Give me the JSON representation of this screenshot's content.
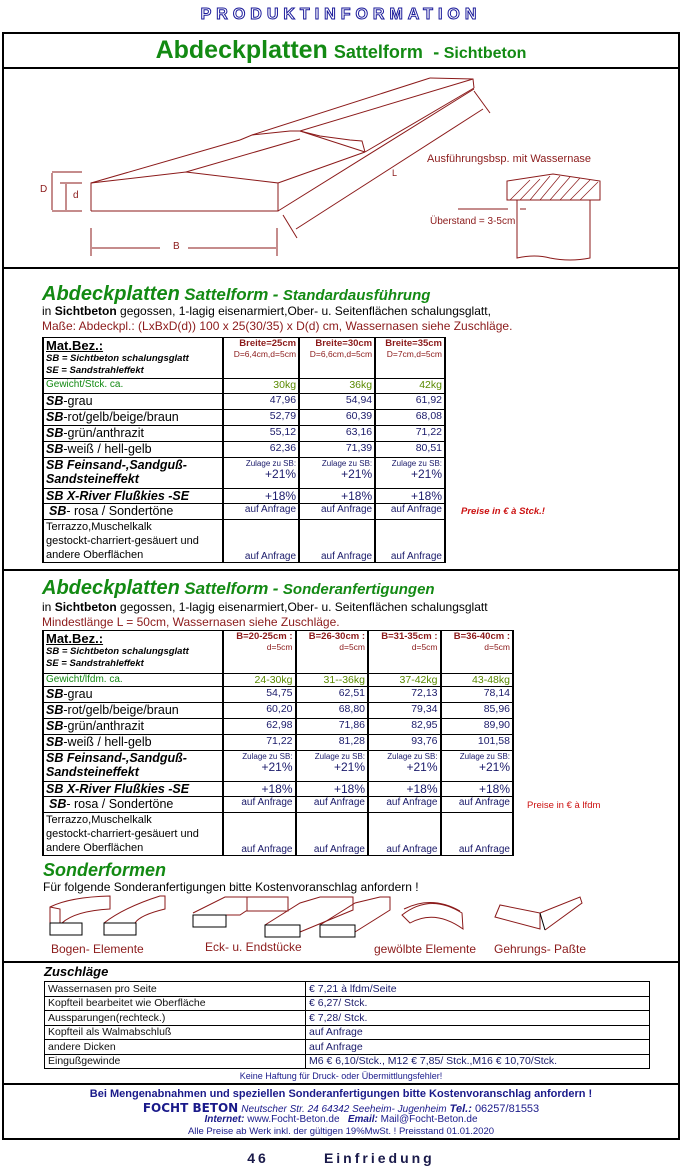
{
  "header": {
    "title": "PRODUKTINFORMATION"
  },
  "main_title": {
    "part1": "Abdeckplatten",
    "part2": "Sattelform",
    "dash": "-",
    "part3": "Sichtbeton"
  },
  "diagram": {
    "label_D": "D",
    "label_d": "d",
    "label_B": "B",
    "label_L": "L",
    "detail_caption": "Ausführungsbsp. mit Wassernase",
    "overhang": "Überstand = 3-5cm"
  },
  "standard": {
    "title": {
      "a": "Abdeckplatten",
      "b": "Sattelform",
      "dash": "-",
      "c": "Standardausführung"
    },
    "line1_pre": "in ",
    "line1_bold": "Sichtbeton",
    "line1_post": " gegossen, 1-lagig eisenarmiert,Ober- u. Seitenflächen schalungsglatt,",
    "line2": "Maße: Abdeckpl.: (LxBxD(d)) 100 x 25(30/35) x D(d) cm, Wassernasen siehe Zuschläge.",
    "table": {
      "mat": "Mat.Bez.:",
      "sb": "SB = Sichtbeton schalungsglatt",
      "se": "SE = Sandstrahleffekt",
      "columns": [
        {
          "h": "Breite=25cm",
          "s": "D=6,4cm,d=5cm"
        },
        {
          "h": "Breite=30cm",
          "s": "D=6,6cm,d=5cm"
        },
        {
          "h": "Breite=35cm",
          "s": "D=7cm,d=5cm"
        }
      ],
      "weight_label": "Gewicht/Stck. ca.",
      "weights": [
        "30kg",
        "36kg",
        "42kg"
      ],
      "rows": [
        {
          "sb": "SB",
          "label": "-grau",
          "values": [
            "47,96",
            "54,94",
            "61,92"
          ]
        },
        {
          "sb": "SB",
          "label": "-rot/gelb/beige/braun",
          "values": [
            "52,79",
            "60,39",
            "68,08"
          ]
        },
        {
          "sb": "SB",
          "label": "-grün/anthrazit",
          "values": [
            "55,12",
            "63,16",
            "71,22"
          ]
        },
        {
          "sb": "SB",
          "label": "-weiß / hell-gelb",
          "values": [
            "62,36",
            "71,39",
            "80,51"
          ]
        }
      ],
      "feinsand_l1": "SB Feinsand-,Sandguß-",
      "feinsand_l2": "Sandsteineffekt",
      "zulage": "Zulage zu SB:",
      "feinsand_values": [
        "+21%",
        "+21%",
        "+21%"
      ],
      "xriver": "SB X-River Flußkies -SE",
      "xriver_values": [
        "+18%",
        "+18%",
        "+18%"
      ],
      "rosa_sb": "SB",
      "rosa": "- rosa / Sondertöne",
      "rosa_values": [
        "auf Anfrage",
        "auf Anfrage",
        "auf Anfrage"
      ],
      "terrazzo_l1": "Terrazzo,Muschelkalk",
      "terrazzo_l2": "gestockt-charriert-gesäuert und",
      "terrazzo_l3": "andere Oberflächen",
      "terrazzo_values": [
        "auf Anfrage",
        "auf Anfrage",
        "auf Anfrage"
      ]
    },
    "price_note": "Preise in €  à Stck.!"
  },
  "sonder": {
    "title": {
      "a": "Abdeckplatten",
      "b": "Sattelform",
      "dash": "-",
      "c": "Sonderanfertigungen"
    },
    "line1_pre": "in ",
    "line1_bold": "Sichtbeton",
    "line1_post": " gegossen, 1-lagig eisenarmiert,Ober- u. Seitenflächen schalungsglatt",
    "line2": "Mindestlänge L = 50cm, Wassernasen siehe Zuschläge.",
    "table": {
      "mat": "Mat.Bez.:",
      "sb": "SB = Sichtbeton schalungsglatt",
      "se": "SE = Sandstrahleffekt",
      "columns": [
        {
          "h": "B=20-25cm :",
          "s": "d=5cm"
        },
        {
          "h": "B=26-30cm :",
          "s": "d=5cm"
        },
        {
          "h": "B=31-35cm :",
          "s": "d=5cm"
        },
        {
          "h": "B=36-40cm :",
          "s": "d=5cm"
        }
      ],
      "weight_label": "Gewicht/lfdm. ca.",
      "weights": [
        "24-30kg",
        "31--36kg",
        "37-42kg",
        "43-48kg"
      ],
      "rows": [
        {
          "sb": "SB",
          "label": "-grau",
          "values": [
            "54,75",
            "62,51",
            "72,13",
            "78,14"
          ]
        },
        {
          "sb": "SB",
          "label": "-rot/gelb/beige/braun",
          "values": [
            "60,20",
            "68,80",
            "79,34",
            "85,96"
          ]
        },
        {
          "sb": "SB",
          "label": "-grün/anthrazit",
          "values": [
            "62,98",
            "71,86",
            "82,95",
            "89,90"
          ]
        },
        {
          "sb": "SB",
          "label": "-weiß / hell-gelb",
          "values": [
            "71,22",
            "81,28",
            "93,76",
            "101,58"
          ]
        }
      ],
      "feinsand_l1": "SB Feinsand-,Sandguß-",
      "feinsand_l2": "Sandsteineffekt",
      "zulage": "Zulage zu SB:",
      "feinsand_values": [
        "+21%",
        "+21%",
        "+21%",
        "+21%"
      ],
      "xriver": "SB X-River Flußkies -SE",
      "xriver_values": [
        "+18%",
        "+18%",
        "+18%",
        "+18%"
      ],
      "rosa_sb": "SB",
      "rosa": "- rosa / Sondertöne",
      "rosa_values": [
        "auf Anfrage",
        "auf Anfrage",
        "auf Anfrage",
        "auf Anfrage"
      ],
      "terrazzo_l1": "Terrazzo,Muschelkalk",
      "terrazzo_l2": "gestockt-charriert-gesäuert und",
      "terrazzo_l3": "andere Oberflächen",
      "terrazzo_values": [
        "auf Anfrage",
        "auf Anfrage",
        "auf Anfrage",
        "auf Anfrage"
      ]
    },
    "price_note": "Preise in €  à lfdm"
  },
  "sonderformen": {
    "title": "Sonderformen",
    "text": "Für folgende Sonderanfertigungen bitte Kostenvoranschlag anfordern !",
    "labels": [
      "Bogen- Elemente",
      "Eck- u. Endstücke",
      "gewölbte Elemente",
      "Gehrungs- Paßte"
    ]
  },
  "zuschlaege": {
    "title": "Zuschläge",
    "rows": [
      [
        "Wassernasen pro Seite",
        "€ 7,21 à lfdm/Seite"
      ],
      [
        "Kopfteil bearbeitet wie Oberfläche",
        "€ 6,27/ Stck."
      ],
      [
        "Aussparungen(rechteck.)",
        "€ 7,28/ Stck."
      ],
      [
        "Kopfteil als Walmabschluß",
        "auf Anfrage"
      ],
      [
        "andere Dicken",
        "auf Anfrage"
      ],
      [
        "Eingußgewinde",
        "M6   € 6,10/Stck., M12  € 7,85/ Stck.,M16  € 10,70/Stck."
      ]
    ],
    "disclaimer": "Keine Haftung für Druck- oder Übermittlungsfehler!"
  },
  "footer": {
    "line1": "Bei Mengenabnahmen und speziellen Sonderanfertigungen bitte Kostenvoranschlag anfordern !",
    "company": "FOCHT BETON",
    "address": "Neutscher Str. 24   64342 Seeheim- Jugenheim",
    "tel_label": "Tel.:",
    "tel": "06257/81553",
    "internet_label": "Internet:",
    "internet": "www.Focht-Beton.de",
    "email_label": "Email:",
    "email": "Mail@Focht-Beton.de",
    "prices": "Alle Preise ab Werk inkl. der gültigen 19%MwSt. !    Preisstand 01.01.2020"
  },
  "page": {
    "number": "46",
    "section": "Einfriedung"
  }
}
